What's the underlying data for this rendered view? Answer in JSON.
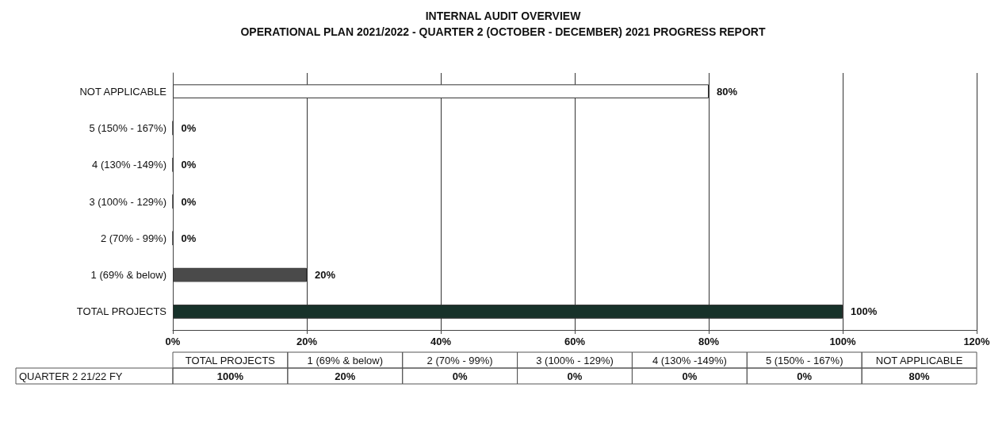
{
  "chart_data": {
    "type": "bar",
    "orientation": "horizontal",
    "title": "INTERNAL AUDIT OVERVIEW",
    "subtitle": "OPERATIONAL PLAN 2021/2022 - QUARTER 2 (OCTOBER - DECEMBER) 2021 PROGRESS REPORT",
    "categories": [
      "NOT APPLICABLE",
      "5 (150% - 167%)",
      "4 (130% -149%)",
      "3 (100% - 129%)",
      "2 (70% - 99%)",
      "1 (69% & below)",
      "TOTAL PROJECTS"
    ],
    "series": [
      {
        "name": "QUARTER 2 21/22 FY",
        "values": [
          80,
          0,
          0,
          0,
          0,
          20,
          100
        ],
        "colors": [
          "#ffffff",
          "#333333",
          "#333333",
          "#333333",
          "#333333",
          "#4a4a4a",
          "#17322a"
        ],
        "value_labels": [
          "80%",
          "0%",
          "0%",
          "0%",
          "0%",
          "20%",
          "100%"
        ]
      }
    ],
    "xlim": [
      0,
      120
    ],
    "xticks": [
      {
        "value": 0,
        "label": "0%"
      },
      {
        "value": 20,
        "label": "20%"
      },
      {
        "value": 40,
        "label": "40%"
      },
      {
        "value": 60,
        "label": "60%"
      },
      {
        "value": 80,
        "label": "80%"
      },
      {
        "value": 100,
        "label": "100%"
      },
      {
        "value": 120,
        "label": "120%"
      }
    ],
    "grid": "x",
    "legend": false
  }
}
